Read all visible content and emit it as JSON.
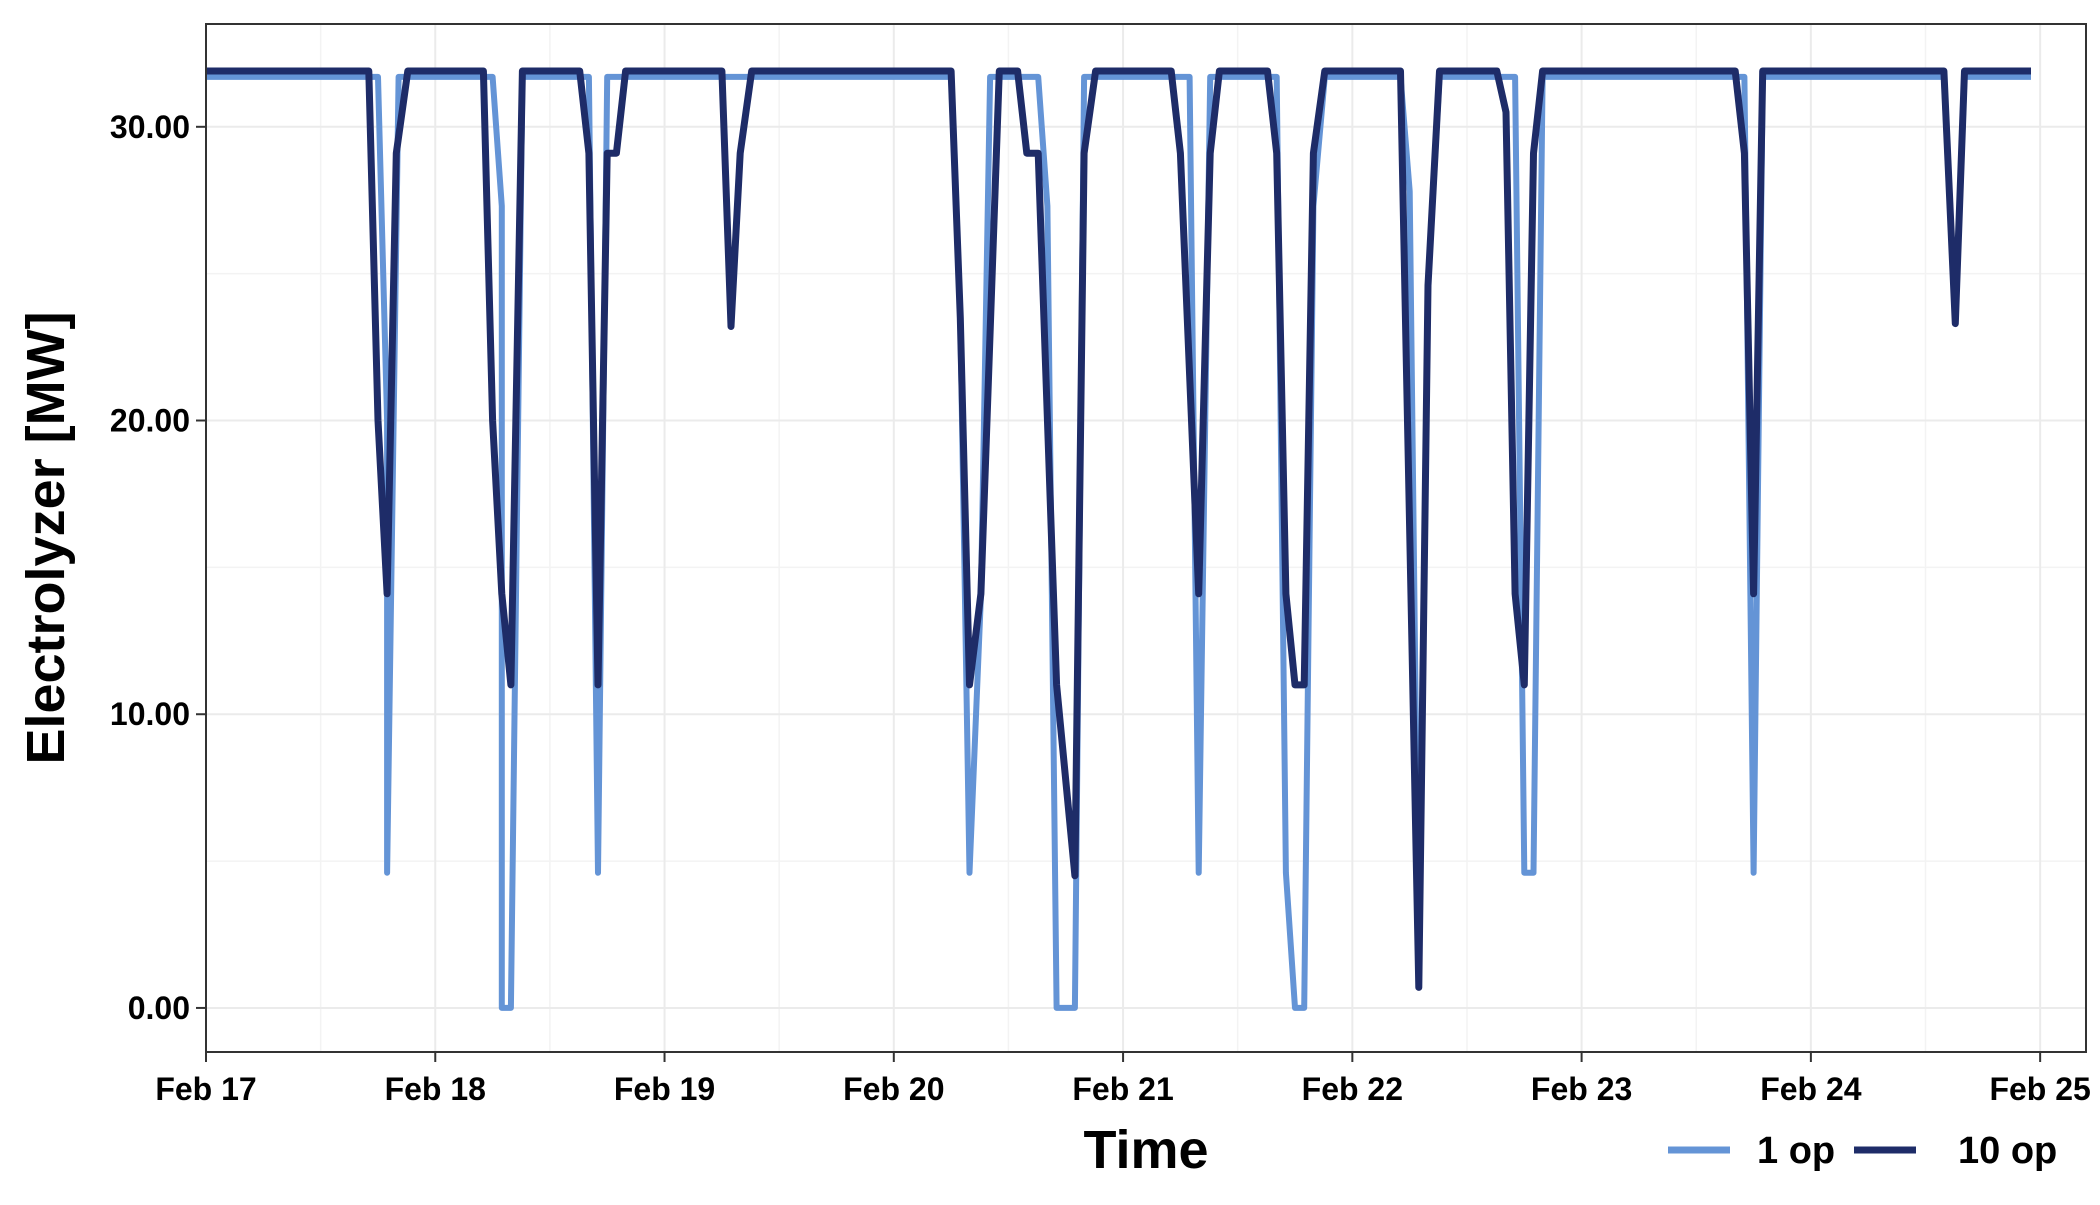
{
  "chart_data": {
    "type": "line",
    "xlabel": "Time",
    "ylabel": "Electrolyzer [MW]",
    "xlim": [
      0,
      8.2
    ],
    "ylim": [
      -1.5,
      33.5
    ],
    "x_ticks": [
      {
        "value": 0,
        "label": "Feb 17"
      },
      {
        "value": 1,
        "label": "Feb 18"
      },
      {
        "value": 2,
        "label": "Feb 19"
      },
      {
        "value": 3,
        "label": "Feb 20"
      },
      {
        "value": 4,
        "label": "Feb 21"
      },
      {
        "value": 5,
        "label": "Feb 22"
      },
      {
        "value": 6,
        "label": "Feb 23"
      },
      {
        "value": 7,
        "label": "Feb 24"
      },
      {
        "value": 8,
        "label": "Feb 25"
      }
    ],
    "y_ticks": [
      {
        "value": 0,
        "label": "0.00"
      },
      {
        "value": 10,
        "label": "10.00"
      },
      {
        "value": 20,
        "label": "20.00"
      },
      {
        "value": 30,
        "label": "30.00"
      }
    ],
    "grid": true,
    "legend_position": "bottom-right",
    "series": [
      {
        "name": "1 op",
        "color": "#6494d6",
        "points": [
          [
            0,
            31.7
          ],
          [
            0.75,
            31.7
          ],
          [
            0.79,
            20
          ],
          [
            0.79,
            4.6
          ],
          [
            0.84,
            31.7
          ],
          [
            1.25,
            31.7
          ],
          [
            1.29,
            27.3
          ],
          [
            1.29,
            0
          ],
          [
            1.33,
            0
          ],
          [
            1.38,
            31.7
          ],
          [
            1.67,
            31.7
          ],
          [
            1.71,
            4.6
          ],
          [
            1.75,
            31.7
          ],
          [
            3.25,
            31.7
          ],
          [
            3.29,
            23.5
          ],
          [
            3.33,
            4.6
          ],
          [
            3.38,
            14
          ],
          [
            3.42,
            31.7
          ],
          [
            3.63,
            31.7
          ],
          [
            3.67,
            27.3
          ],
          [
            3.71,
            0
          ],
          [
            3.79,
            0
          ],
          [
            3.83,
            31.7
          ],
          [
            4.29,
            31.7
          ],
          [
            4.33,
            4.6
          ],
          [
            4.38,
            31.7
          ],
          [
            4.67,
            31.7
          ],
          [
            4.71,
            4.6
          ],
          [
            4.75,
            0
          ],
          [
            4.79,
            0
          ],
          [
            4.83,
            27.3
          ],
          [
            4.88,
            31.7
          ],
          [
            5.21,
            31.7
          ],
          [
            5.25,
            27.8
          ],
          [
            5.29,
            1
          ],
          [
            5.33,
            24.6
          ],
          [
            5.38,
            31.7
          ],
          [
            5.71,
            31.7
          ],
          [
            5.75,
            4.6
          ],
          [
            5.79,
            4.6
          ],
          [
            5.83,
            31.7
          ],
          [
            6.71,
            31.7
          ],
          [
            6.75,
            4.6
          ],
          [
            6.79,
            31.7
          ],
          [
            7.58,
            31.7
          ],
          [
            7.63,
            23.3
          ],
          [
            7.67,
            31.7
          ],
          [
            7.96,
            31.7
          ]
        ]
      },
      {
        "name": "10 op",
        "color": "#1e2c68",
        "points": [
          [
            0,
            31.9
          ],
          [
            0.71,
            31.9
          ],
          [
            0.75,
            20
          ],
          [
            0.79,
            14.1
          ],
          [
            0.83,
            29.1
          ],
          [
            0.88,
            31.9
          ],
          [
            1.21,
            31.9
          ],
          [
            1.25,
            20
          ],
          [
            1.29,
            14.1
          ],
          [
            1.33,
            11
          ],
          [
            1.38,
            31.9
          ],
          [
            1.63,
            31.9
          ],
          [
            1.67,
            29.1
          ],
          [
            1.71,
            11
          ],
          [
            1.75,
            29.1
          ],
          [
            1.79,
            29.1
          ],
          [
            1.83,
            31.9
          ],
          [
            2.25,
            31.9
          ],
          [
            2.29,
            23.2
          ],
          [
            2.33,
            29.1
          ],
          [
            2.38,
            31.9
          ],
          [
            3.25,
            31.9
          ],
          [
            3.29,
            23.5
          ],
          [
            3.33,
            11
          ],
          [
            3.38,
            14.1
          ],
          [
            3.46,
            31.9
          ],
          [
            3.54,
            31.9
          ],
          [
            3.58,
            29.1
          ],
          [
            3.63,
            29.1
          ],
          [
            3.71,
            11
          ],
          [
            3.79,
            4.5
          ],
          [
            3.83,
            29.1
          ],
          [
            3.88,
            31.9
          ],
          [
            4.21,
            31.9
          ],
          [
            4.25,
            29.1
          ],
          [
            4.33,
            14.1
          ],
          [
            4.38,
            29.1
          ],
          [
            4.42,
            31.9
          ],
          [
            4.63,
            31.9
          ],
          [
            4.67,
            29.1
          ],
          [
            4.71,
            14.1
          ],
          [
            4.75,
            11
          ],
          [
            4.79,
            11
          ],
          [
            4.83,
            29.1
          ],
          [
            4.88,
            31.9
          ],
          [
            5.21,
            31.9
          ],
          [
            5.29,
            0.7
          ],
          [
            5.33,
            24.6
          ],
          [
            5.38,
            31.9
          ],
          [
            5.63,
            31.9
          ],
          [
            5.67,
            30.5
          ],
          [
            5.71,
            14.1
          ],
          [
            5.75,
            11
          ],
          [
            5.79,
            29.1
          ],
          [
            5.83,
            31.9
          ],
          [
            6.67,
            31.9
          ],
          [
            6.71,
            29.1
          ],
          [
            6.75,
            14.1
          ],
          [
            6.79,
            31.9
          ],
          [
            7.58,
            31.9
          ],
          [
            7.63,
            23.3
          ],
          [
            7.67,
            31.9
          ],
          [
            7.96,
            31.9
          ]
        ]
      }
    ]
  }
}
